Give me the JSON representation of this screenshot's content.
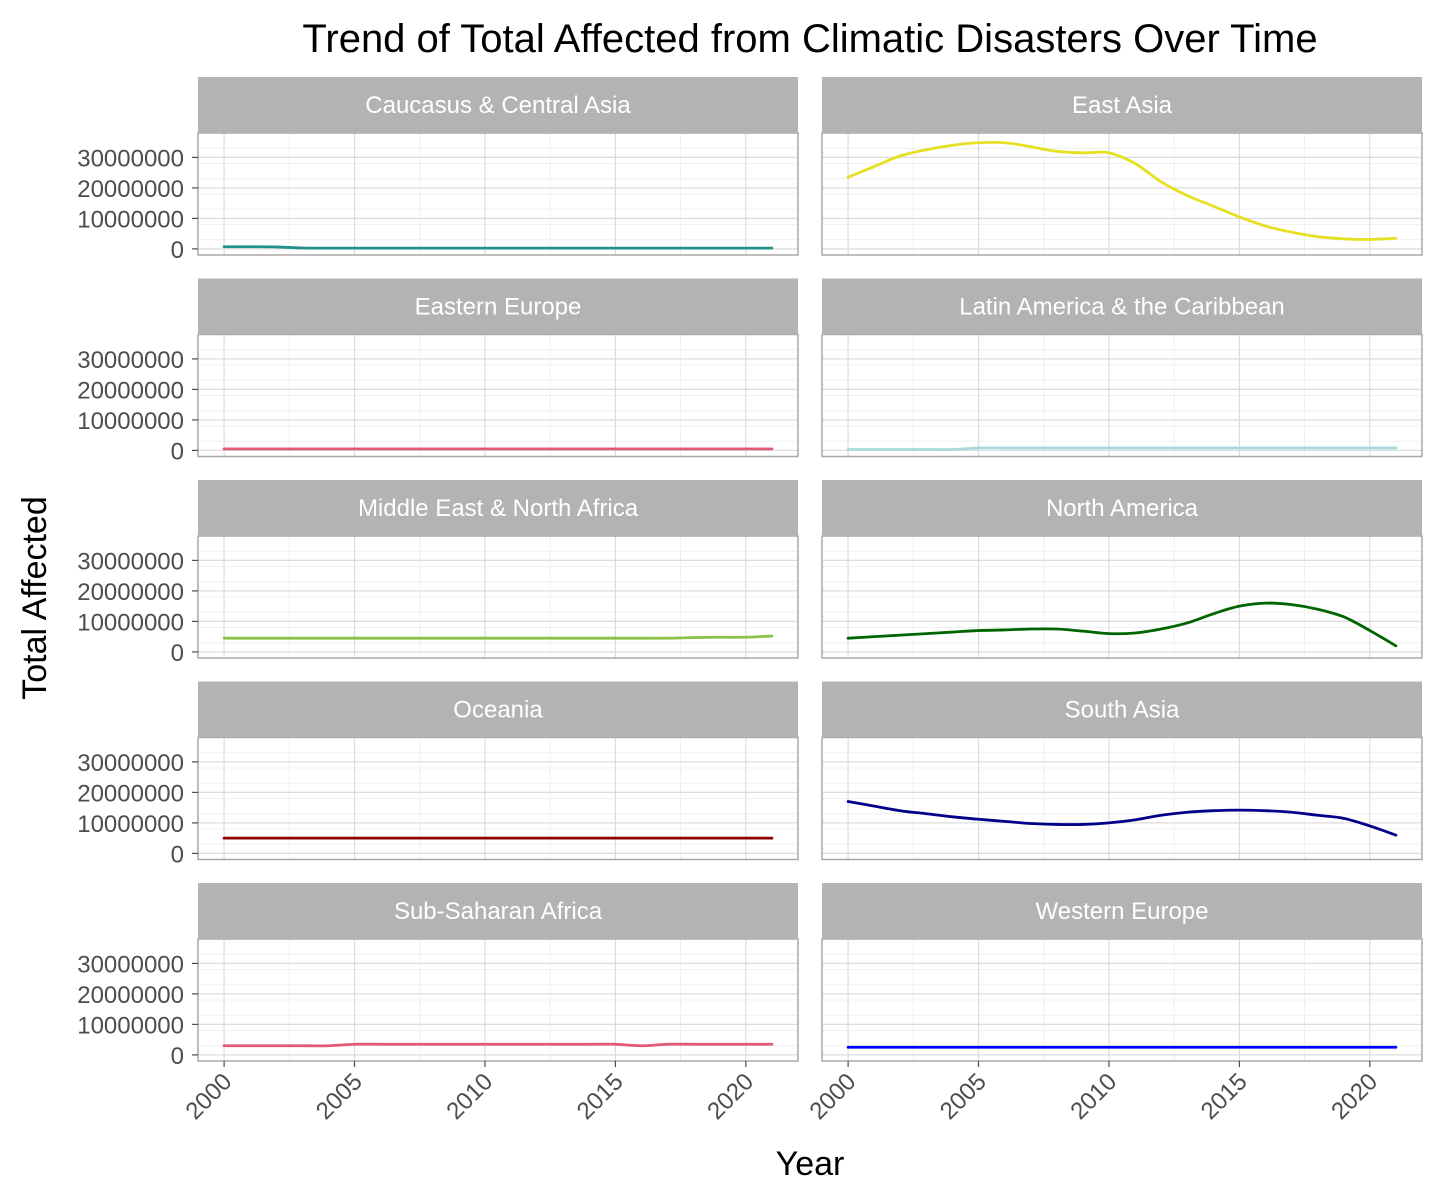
{
  "chart_data": {
    "type": "line",
    "title": "Trend of Total Affected from Climatic Disasters Over Time",
    "xlabel": "Year",
    "ylabel": "Total Affected",
    "xlim": [
      1999,
      2022
    ],
    "ylim": [
      -2000000,
      38000000
    ],
    "x_ticks": [
      2000,
      2005,
      2010,
      2015,
      2020
    ],
    "y_ticks": [
      0,
      10000000,
      20000000,
      30000000
    ],
    "y_tick_labels": [
      "0",
      "10000000",
      "20000000",
      "30000000"
    ],
    "grid": true,
    "facet_layout": {
      "columns": 2,
      "rows": 5
    },
    "x": [
      2000,
      2001,
      2002,
      2003,
      2004,
      2005,
      2006,
      2007,
      2008,
      2009,
      2010,
      2011,
      2012,
      2013,
      2014,
      2015,
      2016,
      2017,
      2018,
      2019,
      2020,
      2021
    ],
    "series": [
      {
        "name": "Caucasus & Central Asia",
        "color": "#21908C",
        "values": [
          700000,
          700000,
          650000,
          300000,
          250000,
          250000,
          250000,
          250000,
          250000,
          250000,
          250000,
          250000,
          250000,
          250000,
          250000,
          250000,
          250000,
          250000,
          250000,
          250000,
          250000,
          250000
        ]
      },
      {
        "name": "East Asia",
        "color": "#E6E022",
        "values": [
          23500000,
          27000000,
          30500000,
          32500000,
          34000000,
          34800000,
          34800000,
          33500000,
          32000000,
          31500000,
          31500000,
          28000000,
          22000000,
          17500000,
          14000000,
          10500000,
          7500000,
          5500000,
          4000000,
          3300000,
          3100000,
          3500000
        ]
      },
      {
        "name": "Eastern Europe",
        "color": "#E05A71",
        "values": [
          500000,
          500000,
          500000,
          500000,
          500000,
          500000,
          500000,
          500000,
          500000,
          500000,
          500000,
          500000,
          500000,
          500000,
          500000,
          500000,
          500000,
          500000,
          500000,
          500000,
          500000,
          500000
        ]
      },
      {
        "name": "Latin America & the Caribbean",
        "color": "#A8DADC",
        "values": [
          300000,
          300000,
          300000,
          300000,
          300000,
          800000,
          800000,
          800000,
          800000,
          800000,
          800000,
          800000,
          800000,
          800000,
          800000,
          800000,
          800000,
          800000,
          800000,
          800000,
          800000,
          800000
        ]
      },
      {
        "name": "Middle East & North Africa",
        "color": "#8BC34A",
        "values": [
          4500000,
          4500000,
          4500000,
          4500000,
          4500000,
          4500000,
          4500000,
          4500000,
          4500000,
          4500000,
          4500000,
          4500000,
          4500000,
          4500000,
          4500000,
          4500000,
          4500000,
          4500000,
          4700000,
          4800000,
          4800000,
          5200000
        ]
      },
      {
        "name": "North America",
        "color": "#006400",
        "values": [
          4500000,
          5000000,
          5500000,
          6000000,
          6500000,
          7000000,
          7200000,
          7500000,
          7500000,
          6800000,
          6000000,
          6200000,
          7500000,
          9500000,
          12500000,
          15000000,
          16000000,
          15500000,
          14000000,
          11500000,
          7000000,
          2000000
        ]
      },
      {
        "name": "Oceania",
        "color": "#8B0000",
        "values": [
          5000000,
          5000000,
          5000000,
          5000000,
          5000000,
          5000000,
          5000000,
          5000000,
          5000000,
          5000000,
          5000000,
          5000000,
          5000000,
          5000000,
          5000000,
          5000000,
          5000000,
          5000000,
          5000000,
          5000000,
          5000000,
          5000000
        ]
      },
      {
        "name": "South Asia",
        "color": "#00008B",
        "values": [
          17000000,
          15500000,
          14000000,
          13000000,
          12000000,
          11200000,
          10500000,
          9800000,
          9500000,
          9500000,
          10000000,
          11000000,
          12500000,
          13500000,
          14000000,
          14200000,
          14000000,
          13500000,
          12500000,
          11500000,
          9000000,
          6000000
        ]
      },
      {
        "name": "Sub-Saharan Africa",
        "color": "#E05A71",
        "values": [
          3000000,
          3000000,
          3000000,
          3000000,
          3000000,
          3500000,
          3500000,
          3500000,
          3500000,
          3500000,
          3500000,
          3500000,
          3500000,
          3500000,
          3500000,
          3500000,
          3000000,
          3500000,
          3500000,
          3500000,
          3500000,
          3500000
        ]
      },
      {
        "name": "Western Europe",
        "color": "#0000FF",
        "values": [
          2500000,
          2500000,
          2500000,
          2500000,
          2500000,
          2500000,
          2500000,
          2500000,
          2500000,
          2500000,
          2500000,
          2500000,
          2500000,
          2500000,
          2500000,
          2500000,
          2500000,
          2500000,
          2500000,
          2500000,
          2500000,
          2500000
        ]
      }
    ]
  }
}
